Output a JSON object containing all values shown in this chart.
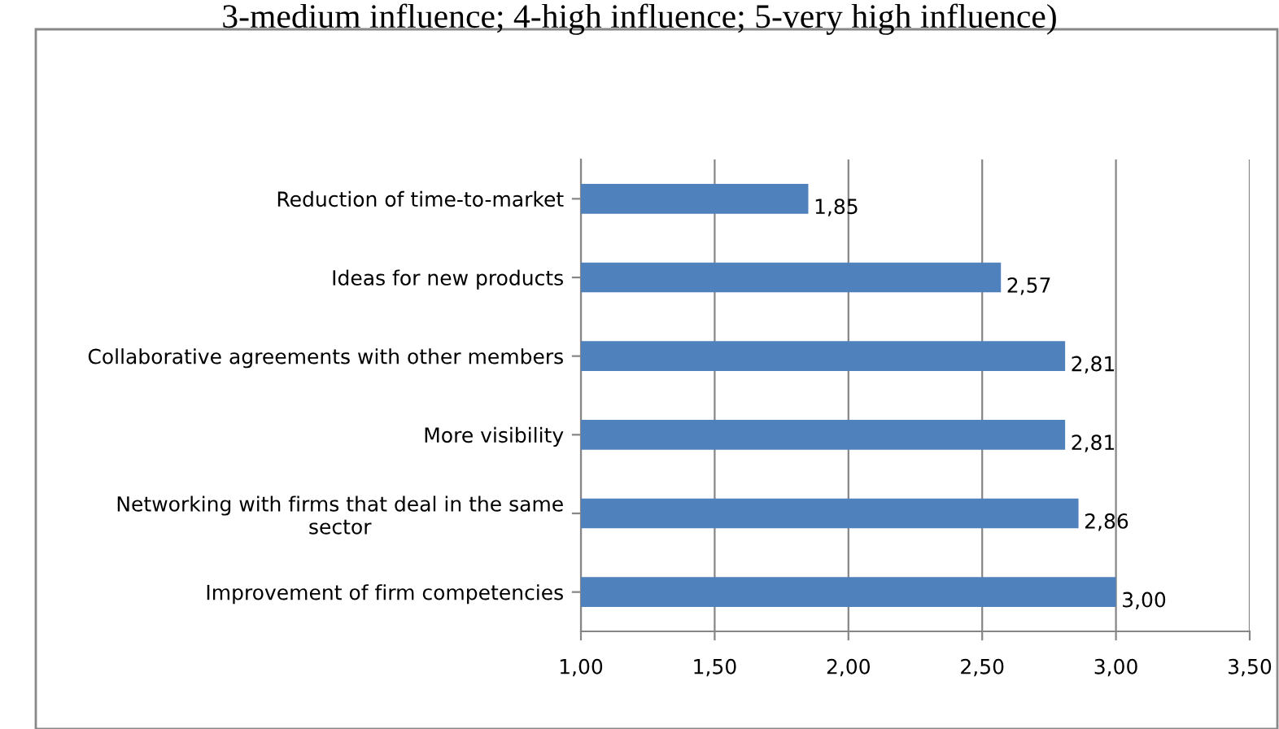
{
  "chart_data": {
    "type": "bar",
    "orientation": "horizontal",
    "title": "3-medium influence; 4-high influence; 5-very high influence)",
    "categories": [
      "Reduction of time-to-market",
      "Ideas for new products",
      "Collaborative agreements with other members",
      "More visibility",
      "Networking with firms that deal in the same\nsector",
      "Improvement of firm competencies"
    ],
    "values": [
      1.85,
      2.57,
      2.81,
      2.81,
      2.86,
      3.0
    ],
    "value_labels": [
      "1,85",
      "2,57",
      "2,81",
      "2,81",
      "2,86",
      "3,00"
    ],
    "color": "#4f81bd",
    "xlim": [
      1.0,
      3.5
    ],
    "xticks": [
      {
        "value": 1.0,
        "label": "1,00"
      },
      {
        "value": 1.5,
        "label": "1,50"
      },
      {
        "value": 2.0,
        "label": "2,00"
      },
      {
        "value": 2.5,
        "label": "2,50"
      },
      {
        "value": 3.0,
        "label": "3,00"
      },
      {
        "value": 3.5,
        "label": "3,50"
      }
    ],
    "grid": "x",
    "legend": false
  }
}
